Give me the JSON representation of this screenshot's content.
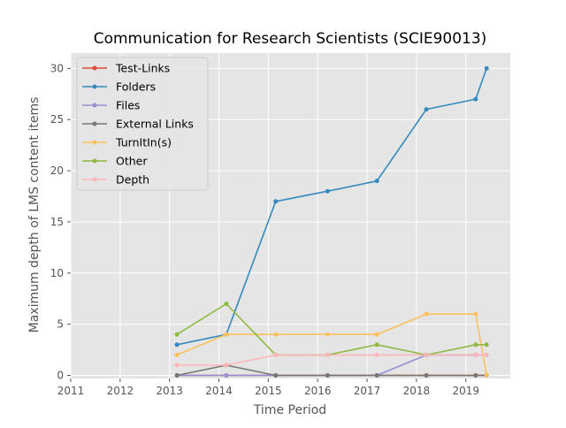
{
  "chart_data": {
    "type": "line",
    "title": "Communication for Research Scientists (SCIE90013)",
    "xlabel": "Time Period",
    "ylabel": "Maximum depth of LMS content items",
    "xlim": [
      2011,
      2019.9
    ],
    "ylim": [
      -0.3,
      31.5
    ],
    "x_ticks": [
      2011,
      2012,
      2013,
      2014,
      2015,
      2016,
      2017,
      2018,
      2019
    ],
    "y_ticks": [
      0,
      5,
      10,
      15,
      20,
      25,
      30
    ],
    "grid": true,
    "legend_position": "upper-left",
    "x": [
      2013.15,
      2014.15,
      2015.15,
      2016.2,
      2017.2,
      2018.2,
      2019.2,
      2019.42
    ],
    "series": [
      {
        "name": "Test-Links",
        "color": "#e24a33",
        "values": [
          0,
          0,
          0,
          0,
          0,
          0,
          0,
          0
        ]
      },
      {
        "name": "Folders",
        "color": "#348abd",
        "values": [
          3,
          4,
          17,
          18,
          19,
          26,
          27,
          30
        ]
      },
      {
        "name": "Files",
        "color": "#988ed5",
        "values": [
          0,
          0,
          0,
          0,
          0,
          2,
          2,
          2
        ]
      },
      {
        "name": "External Links",
        "color": "#777777",
        "values": [
          0,
          1,
          0,
          0,
          0,
          0,
          0,
          0
        ]
      },
      {
        "name": "TurnItIn(s)",
        "color": "#fbc15e",
        "values": [
          2,
          4,
          4,
          4,
          4,
          6,
          6,
          0
        ]
      },
      {
        "name": "Other",
        "color": "#8eba42",
        "values": [
          4,
          7,
          2,
          2,
          3,
          2,
          3,
          3
        ]
      },
      {
        "name": "Depth",
        "color": "#ffb5b8",
        "values": [
          1,
          1,
          2,
          2,
          2,
          2,
          2,
          2
        ]
      }
    ]
  }
}
